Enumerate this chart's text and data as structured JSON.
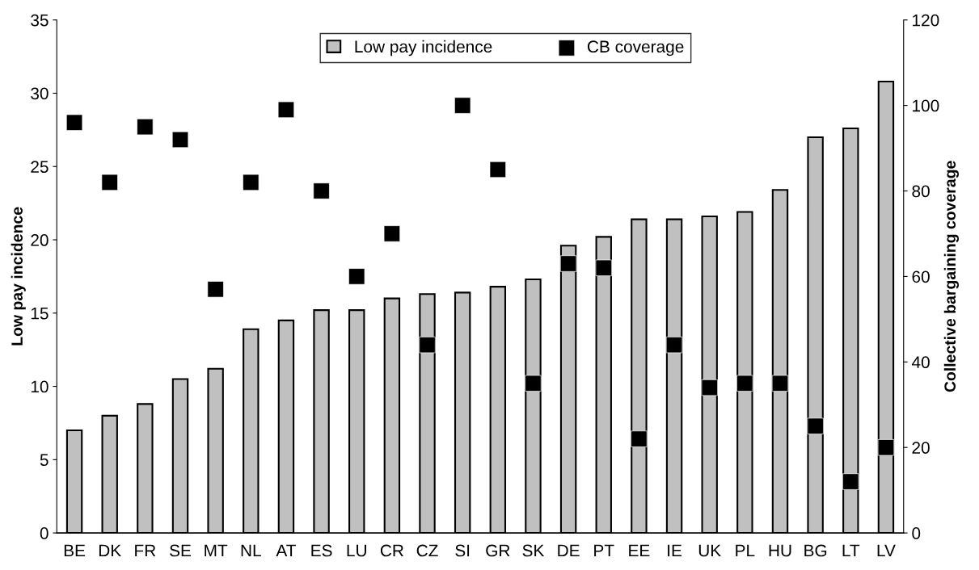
{
  "chart_data": {
    "type": "bar",
    "categories": [
      "BE",
      "DK",
      "FR",
      "SE",
      "MT",
      "NL",
      "AT",
      "ES",
      "LU",
      "CR",
      "CZ",
      "SI",
      "GR",
      "SK",
      "DE",
      "PT",
      "EE",
      "IE",
      "UK",
      "PL",
      "HU",
      "BG",
      "LT",
      "LV"
    ],
    "series": [
      {
        "name": "Low pay incidence",
        "color": "#c0c0c0",
        "values": [
          7.0,
          8.0,
          8.8,
          10.5,
          11.2,
          13.9,
          14.5,
          15.2,
          15.2,
          16.0,
          16.3,
          16.4,
          16.8,
          17.3,
          19.6,
          20.2,
          21.4,
          21.4,
          21.6,
          21.9,
          23.4,
          27.0,
          27.6,
          30.8
        ]
      },
      {
        "name": "CB coverage",
        "type": "scatter",
        "axis": "y2",
        "color": "#000000",
        "marker": "square",
        "values": [
          96,
          82,
          95,
          92,
          57,
          82,
          99,
          80,
          60,
          70,
          44,
          100,
          85,
          35,
          63,
          62,
          22,
          44,
          34,
          35,
          35,
          25,
          12,
          20
        ]
      }
    ],
    "ylabel": "Low pay incidence",
    "y2label": "Collective bargaining coverage",
    "ylim": [
      0,
      35
    ],
    "yticks": [
      0,
      5,
      10,
      15,
      20,
      25,
      30,
      35
    ],
    "y2lim": [
      0,
      120
    ],
    "y2ticks": [
      0,
      20,
      40,
      60,
      80,
      100,
      120
    ],
    "legend": "top",
    "grid": false
  }
}
